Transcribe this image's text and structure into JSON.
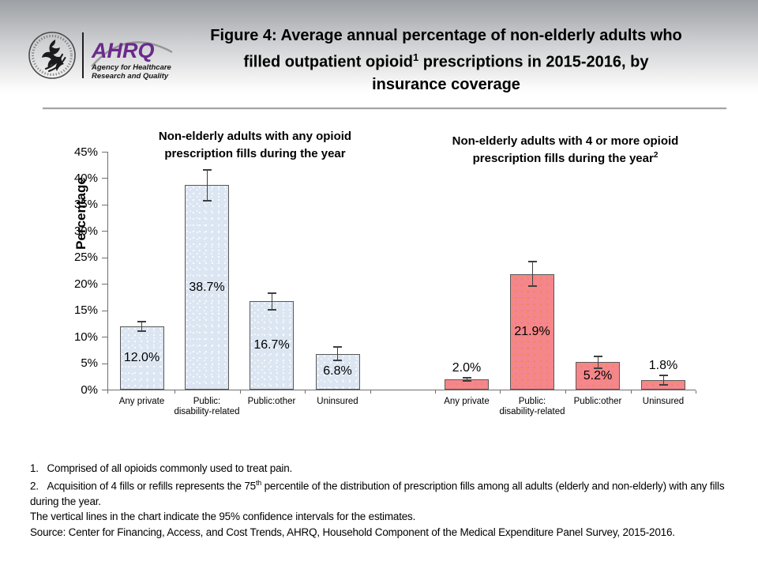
{
  "header": {
    "ahrq_acronym": "AHRQ",
    "ahrq_tagline_line1": "Agency for Healthcare",
    "ahrq_tagline_line2": "Research and Quality",
    "title_line1": "Figure 4: Average annual percentage of non-elderly adults who",
    "title_line2_pre": "filled outpatient opioid",
    "title_line2_sup": "1",
    "title_line2_post": " prescriptions in 2015-2016, by",
    "title_line3": "insurance coverage"
  },
  "chart_data": {
    "type": "bar",
    "title": "Figure 4: Average annual percentage of non-elderly adults who filled outpatient opioid prescriptions in 2015-2016, by insurance coverage",
    "ylabel": "Percentage",
    "ylim": [
      0,
      45
    ],
    "ytick_step": 5,
    "ytick_labels": [
      "0%",
      "5%",
      "10%",
      "15%",
      "20%",
      "25%",
      "30%",
      "35%",
      "40%",
      "45%"
    ],
    "grid": false,
    "error_bars": "95% confidence intervals",
    "categories": [
      "Any private",
      "Public:\ndisability-related",
      "Public:other",
      "Uninsured"
    ],
    "series": [
      {
        "name": "Non-elderly adults with any opioid prescription fills during the year",
        "subtitle_line1": "Non-elderly adults with any opioid",
        "subtitle_line2": "prescription fills during the year",
        "subtitle_sup": "",
        "fill": "#dce6f2",
        "border": "#595959",
        "values": [
          12.0,
          38.7,
          16.7,
          6.8
        ],
        "labels": [
          "12.0%",
          "38.7%",
          "16.7%",
          "6.8%"
        ],
        "ci": [
          0.9,
          2.9,
          1.6,
          1.3
        ]
      },
      {
        "name": "Non-elderly adults with 4 or more opioid prescription fills during the year",
        "subtitle_line1": "Non-elderly adults with 4 or more opioid",
        "subtitle_line2": "prescription fills during the year",
        "subtitle_sup": "2",
        "fill": "#f5868c",
        "border": "#595959",
        "values": [
          2.0,
          21.9,
          5.2,
          1.8
        ],
        "labels": [
          "2.0%",
          "21.9%",
          "5.2%",
          "1.8%"
        ],
        "ci": [
          0.3,
          2.3,
          1.1,
          0.9
        ]
      }
    ]
  },
  "footnotes": {
    "fn1": "1.   Comprised of all opioids commonly used to treat pain.",
    "fn2_pre": "2.   Acquisition of 4 fills or refills represents the 75",
    "fn2_sup": "th",
    "fn2_post": " percentile of the distribution of prescription fills among all adults (elderly and non-elderly) with any fills during the year.",
    "ci_note": "The vertical lines in the chart indicate the 95% confidence intervals for the estimates.",
    "source": "Source: Center for Financing, Access, and Cost Trends, AHRQ, Household Component of the Medical Expenditure Panel Survey, 2015-2016."
  }
}
